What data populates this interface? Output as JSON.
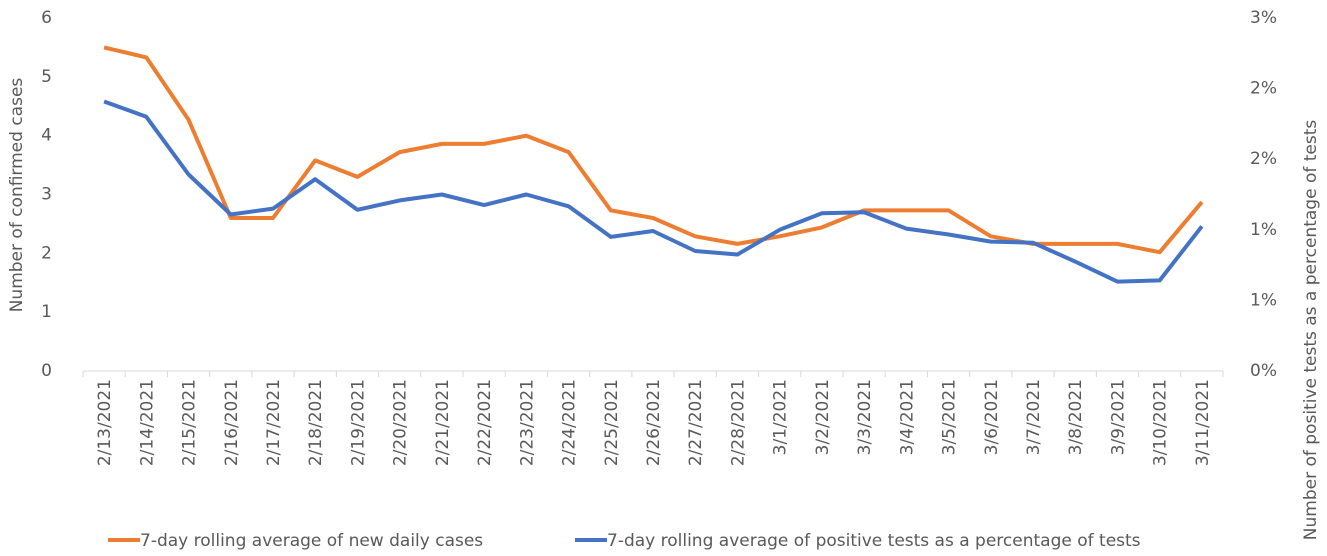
{
  "chart_data": {
    "type": "line",
    "y_label": "Number of confirmed cases",
    "y2_label": "Number of positive tests as a percentage of tests",
    "categories": [
      "2/13/2021",
      "2/14/2021",
      "2/15/2021",
      "2/16/2021",
      "2/17/2021",
      "2/18/2021",
      "2/19/2021",
      "2/20/2021",
      "2/21/2021",
      "2/22/2021",
      "2/23/2021",
      "2/24/2021",
      "2/25/2021",
      "2/26/2021",
      "2/27/2021",
      "2/28/2021",
      "3/1/2021",
      "3/2/2021",
      "3/3/2021",
      "3/4/2021",
      "3/5/2021",
      "3/6/2021",
      "3/7/2021",
      "3/8/2021",
      "3/9/2021",
      "3/10/2021",
      "3/11/2021"
    ],
    "series": [
      {
        "name": "7-day rolling average of new daily cases",
        "color": "#ed7d31",
        "values": [
          5.5,
          5.33,
          4.27,
          2.6,
          2.6,
          3.58,
          3.3,
          3.72,
          3.86,
          3.86,
          4.0,
          3.72,
          2.73,
          2.6,
          2.29,
          2.16,
          2.29,
          2.44,
          2.73,
          2.73,
          2.73,
          2.29,
          2.16,
          2.16,
          2.16,
          2.02,
          2.87
        ]
      },
      {
        "name": "7-day rolling average of positive tests as a percentage of tests",
        "color": "#4472c4",
        "axis": "y2",
        "values": [
          2.29,
          2.16,
          1.67,
          1.33,
          1.38,
          1.63,
          1.37,
          1.45,
          1.5,
          1.41,
          1.5,
          1.4,
          1.14,
          1.19,
          1.02,
          0.99,
          1.2,
          1.34,
          1.35,
          1.21,
          1.16,
          1.1,
          1.09,
          0.93,
          0.76,
          0.77,
          1.23
        ]
      }
    ],
    "ylim": [
      0,
      6
    ],
    "yticks": [
      0,
      1,
      2,
      3,
      4,
      5,
      6
    ],
    "y2lim": [
      0,
      3
    ],
    "y2ticks": [
      {
        "value": 0,
        "label": "0%"
      },
      {
        "value": 0.6,
        "label": "1%"
      },
      {
        "value": 1.2,
        "label": "1%"
      },
      {
        "value": 1.8,
        "label": "2%"
      },
      {
        "value": 2.4,
        "label": "2%"
      },
      {
        "value": 3,
        "label": "3%"
      }
    ],
    "legend": "bottom"
  }
}
